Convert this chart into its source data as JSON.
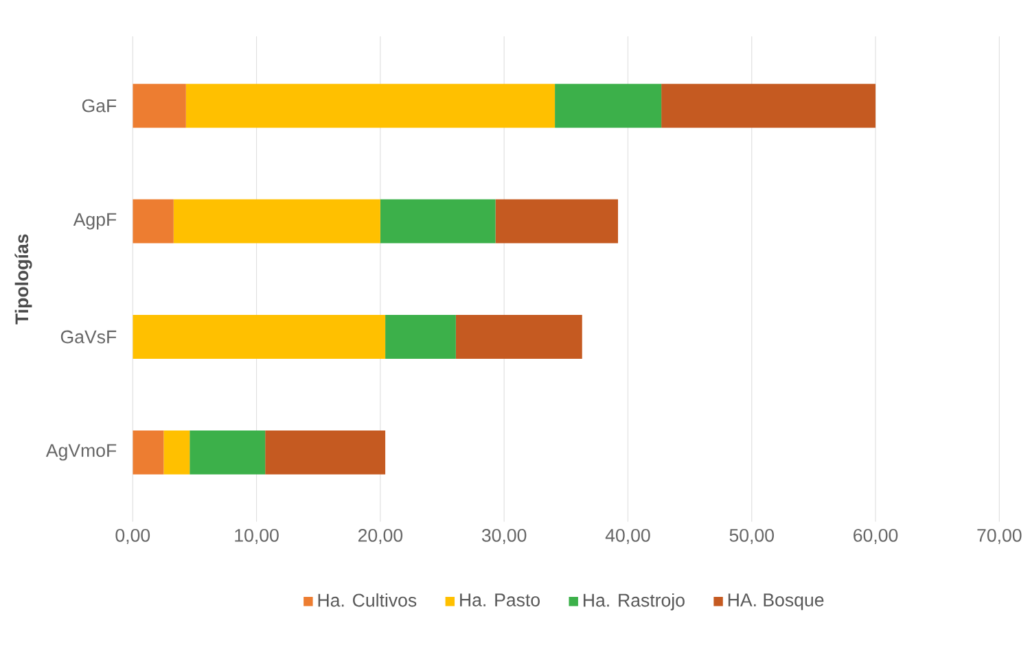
{
  "chart_data": {
    "type": "bar",
    "orientation": "horizontal",
    "stacked": true,
    "ylabel": "Tipologías",
    "categories": [
      "GaF",
      "AgpF",
      "GaVsF",
      "AgVmoF"
    ],
    "series": [
      {
        "name": "Ha. Cultivos",
        "color": "#ed7d31",
        "values": [
          4.3,
          3.3,
          0,
          2.5
        ]
      },
      {
        "name": "Ha. Pasto",
        "color": "#ffc000",
        "values": [
          29.8,
          16.7,
          20.4,
          2.1
        ]
      },
      {
        "name": "Ha. Rastrojo",
        "color": "#3cb04a",
        "values": [
          8.6,
          9.3,
          5.7,
          6.1
        ]
      },
      {
        "name": "HA. Bosque",
        "color": "#c55a21",
        "values": [
          17.3,
          9.9,
          10.2,
          9.7
        ]
      }
    ],
    "xlim": [
      0,
      70
    ],
    "xticks": [
      {
        "value": 0,
        "label": "0,00"
      },
      {
        "value": 10,
        "label": "10,00"
      },
      {
        "value": 20,
        "label": "20,00"
      },
      {
        "value": 30,
        "label": "30,00"
      },
      {
        "value": 40,
        "label": "40,00"
      },
      {
        "value": 50,
        "label": "50,00"
      },
      {
        "value": 60,
        "label": "60,00"
      },
      {
        "value": 70,
        "label": "70,00"
      }
    ],
    "grid": "x",
    "legend": "bottom"
  }
}
